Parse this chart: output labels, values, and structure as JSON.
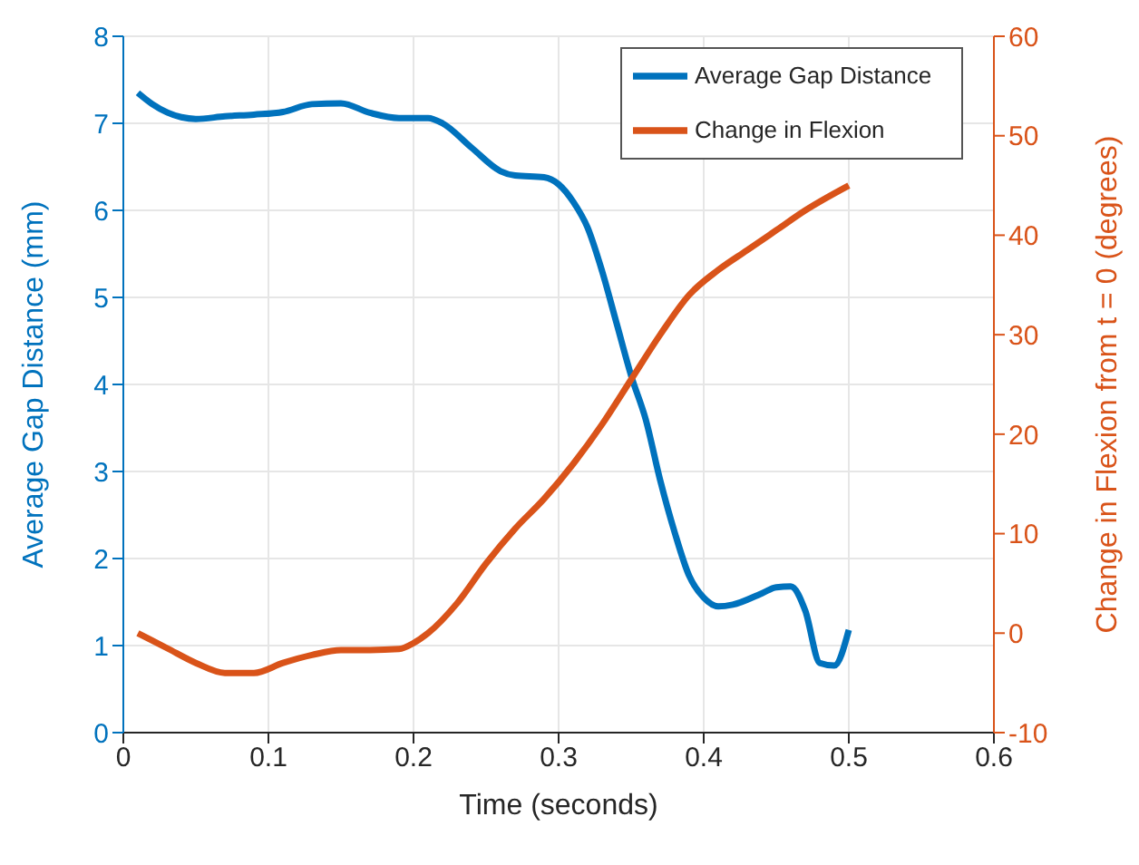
{
  "chart_data": {
    "type": "line",
    "xlabel": "Time (seconds)",
    "ylabel": "Average Gap Distance (mm)",
    "y2label": "Change in Flexion from t = 0 (degrees)",
    "xlim": [
      0,
      0.6
    ],
    "xticks": [
      0,
      0.1,
      0.2,
      0.3,
      0.4,
      0.5,
      0.6
    ],
    "ylim": [
      0,
      8
    ],
    "yticks": [
      0,
      1,
      2,
      3,
      4,
      5,
      6,
      7,
      8
    ],
    "y2lim": [
      -10,
      60
    ],
    "y2ticks": [
      -10,
      0,
      10,
      20,
      30,
      40,
      50,
      60
    ],
    "grid": true,
    "legend": "top right",
    "marker": "none",
    "line_style": "solid",
    "series": [
      {
        "name": "Average Gap Distance",
        "color": "#0072bd",
        "x": [
          0.01,
          0.02,
          0.04,
          0.05,
          0.07,
          0.09,
          0.11,
          0.13,
          0.15,
          0.17,
          0.19,
          0.21,
          0.22,
          0.24,
          0.26,
          0.27,
          0.29,
          0.3,
          0.31,
          0.32,
          0.33,
          0.34,
          0.35,
          0.36,
          0.37,
          0.38,
          0.39,
          0.4,
          0.41,
          0.42,
          0.44,
          0.45,
          0.46,
          0.47,
          0.48,
          0.49,
          0.5
        ],
        "values": [
          7.35,
          7.22,
          7.07,
          7.05,
          7.08,
          7.1,
          7.13,
          7.22,
          7.23,
          7.12,
          7.06,
          7.06,
          7.0,
          6.72,
          6.45,
          6.4,
          6.38,
          6.3,
          6.1,
          5.8,
          5.3,
          4.7,
          4.1,
          3.6,
          2.9,
          2.3,
          1.8,
          1.55,
          1.45,
          1.47,
          1.6,
          1.67,
          1.68,
          1.4,
          0.8,
          0.77,
          1.18
        ]
      },
      {
        "name": "Change in Flexion",
        "color": "#d95319",
        "axis": "y2",
        "x": [
          0.01,
          0.03,
          0.05,
          0.07,
          0.09,
          0.11,
          0.13,
          0.15,
          0.17,
          0.19,
          0.2,
          0.21,
          0.23,
          0.25,
          0.27,
          0.29,
          0.31,
          0.33,
          0.35,
          0.37,
          0.39,
          0.41,
          0.43,
          0.45,
          0.47,
          0.5
        ],
        "values": [
          0,
          -1.5,
          -3,
          -4,
          -4,
          -3,
          -2.2,
          -1.7,
          -1.7,
          -1.6,
          -1,
          0,
          3,
          7,
          10.5,
          13.5,
          17,
          21,
          25.5,
          30,
          34,
          36.5,
          38.5,
          40.5,
          42.5,
          45
        ]
      }
    ]
  }
}
